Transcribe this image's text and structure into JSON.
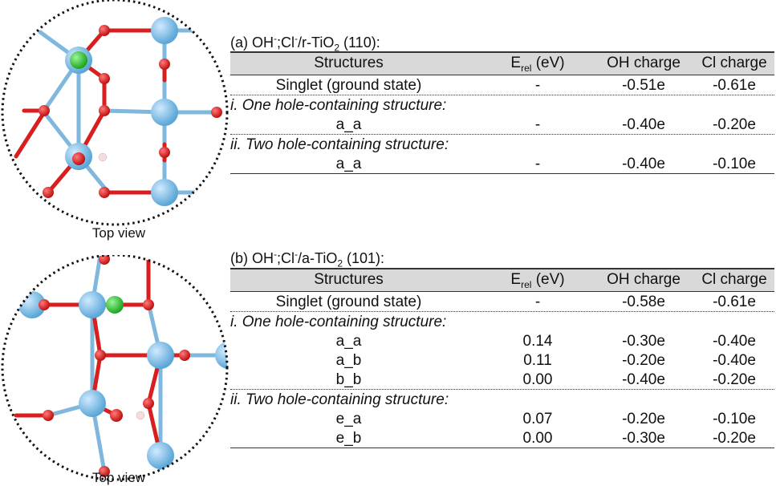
{
  "panel_a": {
    "title_main": "(a) OH",
    "title_sup1": "-",
    "title_mid": ";Cl",
    "title_sup2": "-",
    "title_end": "/r-TiO",
    "title_sub": "2",
    "title_tail": " (110):",
    "caption": "Top view",
    "headers": {
      "structures": "Structures",
      "erel_main": "E",
      "erel_sub": "rel",
      "erel_unit": " (eV)",
      "oh": "OH charge",
      "cl": "Cl charge"
    },
    "ground": {
      "label": "Singlet (ground state)",
      "erel": "-",
      "oh": "-0.51e",
      "cl": "-0.61e"
    },
    "section1": "i. One hole-containing structure:",
    "rows1": [
      {
        "label": "a_a",
        "erel": "-",
        "oh": "-0.40e",
        "cl": "-0.20e"
      }
    ],
    "section2": "ii. Two hole-containing structure:",
    "rows2": [
      {
        "label": "a_a",
        "erel": "-",
        "oh": "-0.40e",
        "cl": "-0.10e"
      }
    ]
  },
  "panel_b": {
    "title_main": "(b) OH",
    "title_sup1": "-",
    "title_mid": ";Cl",
    "title_sup2": "-",
    "title_end": "/a-TiO",
    "title_sub": "2",
    "title_tail": " (101):",
    "caption": "Top view",
    "headers": {
      "structures": "Structures",
      "erel_main": "E",
      "erel_sub": "rel",
      "erel_unit": " (eV)",
      "oh": "OH charge",
      "cl": "Cl charge"
    },
    "ground": {
      "label": "Singlet (ground state)",
      "erel": "-",
      "oh": "-0.58e",
      "cl": "-0.61e"
    },
    "section1": "i. One hole-containing structure:",
    "rows1": [
      {
        "label": "a_a",
        "erel": "0.14",
        "oh": "-0.30e",
        "cl": "-0.40e"
      },
      {
        "label": "a_b",
        "erel": "0.11",
        "oh": "-0.20e",
        "cl": "-0.40e"
      },
      {
        "label": "b_b",
        "erel": "0.00",
        "oh": "-0.40e",
        "cl": "-0.20e"
      }
    ],
    "section2": "ii. Two hole-containing structure:",
    "rows2": [
      {
        "label": "e_a",
        "erel": "0.07",
        "oh": "-0.20e",
        "cl": "-0.10e"
      },
      {
        "label": "e_b",
        "erel": "0.00",
        "oh": "-0.30e",
        "cl": "-0.20e"
      }
    ]
  },
  "colors": {
    "titanium": "#7fbfe6",
    "oxygen": "#d81e1e",
    "chlorine": "#2fbf2f",
    "hydrogen": "#f2dede",
    "header_bg": "#d9d9d9"
  }
}
